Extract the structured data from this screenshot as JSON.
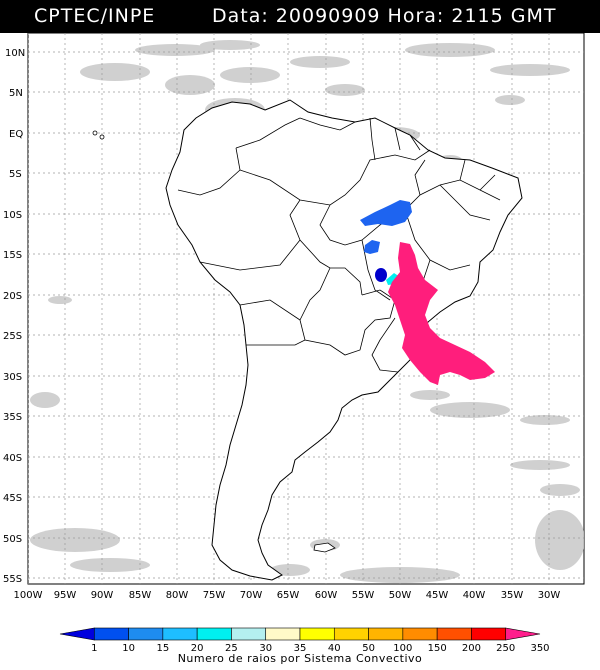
{
  "header": {
    "source": "CPTEC/INPE",
    "datetime": "Data: 20090909 Hora: 2115 GMT"
  },
  "axes": {
    "lat_labels": [
      "10N",
      "5N",
      "EQ",
      "5S",
      "10S",
      "15S",
      "20S",
      "25S",
      "30S",
      "35S",
      "40S",
      "45S",
      "50S",
      "55S"
    ],
    "lon_labels": [
      "100W",
      "95W",
      "90W",
      "85W",
      "80W",
      "75W",
      "70W",
      "65W",
      "60W",
      "55W",
      "50W",
      "45W",
      "40W",
      "35W",
      "30W"
    ]
  },
  "legend": {
    "title": "Numero de raios por Sistema Convectivo",
    "ticks": [
      "1",
      "10",
      "15",
      "20",
      "25",
      "30",
      "35",
      "40",
      "50",
      "100",
      "150",
      "200",
      "250",
      "350"
    ],
    "colors": [
      "#0000dd",
      "#0050f0",
      "#1e8cf0",
      "#1ebeff",
      "#00f0f0",
      "#b4f0f0",
      "#fffac8",
      "#ffff00",
      "#ffd200",
      "#ffb400",
      "#ff8c00",
      "#ff5000",
      "#ff0000",
      "#ff1e8c"
    ]
  },
  "map_style": {
    "ocean": "#ffffff",
    "coast": "#000000",
    "grid": "#9a9a9a",
    "cloud": "#c8c8c8"
  }
}
